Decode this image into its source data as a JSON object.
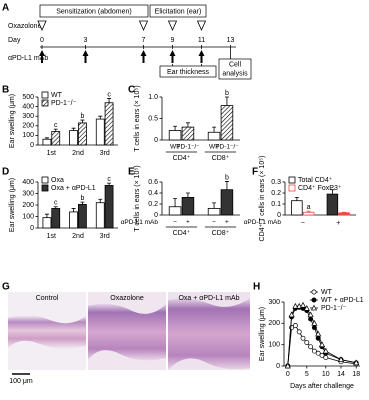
{
  "panel_a": {
    "label": "A",
    "oxazolone": "Oxazolone",
    "day_label": "Day",
    "days": [
      0,
      3,
      7,
      9,
      11,
      13
    ],
    "oxazolone_at": [
      0,
      7,
      9,
      11
    ],
    "mab_label": "αPD-L1 mAb",
    "mab_at": [
      0,
      3,
      7,
      9,
      11
    ],
    "sensitization": "Sensitization (abdomen)",
    "elicitation": "Elicitation (ear)",
    "ear_thickness": "Ear thickness",
    "cell_analysis": [
      "Cell",
      "analysis"
    ]
  },
  "histology": {
    "label": "G",
    "panels": [
      "Control",
      "Oxazolone",
      "Oxa + αPD-L1 mAb"
    ],
    "scale": "100 μm"
  },
  "chart_data": [
    {
      "type": "bar",
      "label": "B",
      "ylabel": "Ear swelling (μm)",
      "categories": [
        "1st",
        "2nd",
        "3rd"
      ],
      "ylim": [
        0,
        500
      ],
      "yticks": [
        0,
        100,
        200,
        300,
        400,
        500
      ],
      "legend": "top-left",
      "series": [
        {
          "name": "WT",
          "color": "#ffffff",
          "stroke": "#000000",
          "values": [
            60,
            150,
            270
          ],
          "errors": [
            15,
            25,
            30
          ]
        },
        {
          "name": "PD-1⁻/⁻",
          "color": "#ffffff",
          "stroke": "#000000",
          "pattern": "hatch",
          "values": [
            140,
            230,
            440
          ],
          "errors": [
            25,
            30,
            45
          ],
          "letters": [
            "c",
            "b",
            "c"
          ]
        }
      ]
    },
    {
      "type": "bar",
      "label": "C",
      "ylabel": "T cells in ears (× 10⁵)",
      "categories": [
        "CD4⁺",
        "CD8⁺"
      ],
      "sublabels": "series",
      "ylim": [
        0,
        1
      ],
      "yticks": [
        0,
        0.5,
        {
          "value": 1,
          "label": "1.0"
        }
      ],
      "series": [
        {
          "name": "WT",
          "color": "#ffffff",
          "stroke": "#000000",
          "values": [
            0.22,
            0.18
          ],
          "errors": [
            0.1,
            0.12
          ]
        },
        {
          "name": "PD-1⁻/⁻",
          "color": "#ffffff",
          "stroke": "#000000",
          "pattern": "hatch",
          "values": [
            0.3,
            0.8
          ],
          "errors": [
            0.1,
            0.2
          ],
          "letters": [
            null,
            "b"
          ]
        }
      ]
    },
    {
      "type": "bar",
      "label": "D",
      "ylabel": "Ear swelling (μm)",
      "categories": [
        "1st",
        "2nd",
        "3rd"
      ],
      "ylim": [
        0,
        400
      ],
      "yticks": [
        0,
        100,
        200,
        300,
        400
      ],
      "legend": "top-left",
      "series": [
        {
          "name": "Oxa",
          "color": "#ffffff",
          "stroke": "#000000",
          "values": [
            90,
            140,
            220
          ],
          "errors": [
            30,
            30,
            30
          ]
        },
        {
          "name": "Oxa + αPD-L1",
          "color": "#333333",
          "stroke": "#000000",
          "values": [
            170,
            205,
            370
          ],
          "errors": [
            15,
            20,
            20
          ],
          "letters": [
            "c",
            "b",
            "c"
          ]
        }
      ]
    },
    {
      "type": "bar",
      "label": "E",
      "ylabel": "T cells in ears (× 10⁵)",
      "categories": [
        "CD4⁺",
        "CD8⁺"
      ],
      "sublabels": "series",
      "row_label": "αPD-L1 mAb",
      "ylim": [
        0,
        0.6
      ],
      "yticks": [
        0,
        0.2,
        0.4,
        0.6
      ],
      "series": [
        {
          "name": "−",
          "color": "#ffffff",
          "stroke": "#000000",
          "values": [
            0.15,
            0.12
          ],
          "errors": [
            0.15,
            0.1
          ]
        },
        {
          "name": "+",
          "color": "#333333",
          "stroke": "#000000",
          "values": [
            0.32,
            0.46
          ],
          "errors": [
            0.08,
            0.15
          ],
          "letters": [
            null,
            "b"
          ]
        }
      ]
    },
    {
      "type": "bar",
      "label": "F",
      "ylabel": "CD4⁺ T cells in ears (× 10⁵)",
      "categories": [
        "−",
        "+"
      ],
      "row_label": "αPD-L1 mAb",
      "ylim": [
        0,
        0.3
      ],
      "yticks": [
        0,
        0.1,
        0.2,
        0.3
      ],
      "legend": "top-left",
      "series": [
        {
          "name": "Total CD4⁺",
          "colors": [
            "#ffffff",
            "#333333"
          ],
          "stroke": "#000000",
          "values": [
            0.13,
            0.19
          ],
          "errors": [
            0.03,
            0.04
          ]
        },
        {
          "name": "CD4⁺ FoxP3⁺",
          "colors": [
            "#ffffff",
            "#e8483f"
          ],
          "stroke": "#e8483f",
          "values": [
            0.025,
            0.02
          ],
          "errors": [
            0.01,
            0.005
          ],
          "letters": [
            "a",
            null
          ]
        }
      ]
    },
    {
      "type": "line",
      "label": "H",
      "ylabel": "Ear swelling (μm)",
      "xlabel": "Days after challenge",
      "x": [
        0,
        1,
        2,
        3,
        4,
        5,
        6,
        7,
        8,
        9,
        10,
        14,
        18
      ],
      "xlim": [
        -1,
        19
      ],
      "xticks": [
        0,
        5,
        10,
        14,
        18
      ],
      "ylim": [
        0,
        300
      ],
      "yticks": [
        0,
        100,
        200,
        300
      ],
      "legend": "top-right",
      "series": [
        {
          "name": "WT",
          "marker": "circle-open",
          "color": "#000000",
          "values": [
            0,
            180,
            190,
            160,
            130,
            110,
            90,
            70,
            60,
            50,
            40,
            20,
            10
          ]
        },
        {
          "name": "WT + αPD-L1",
          "marker": "circle",
          "color": "#000000",
          "values": [
            0,
            230,
            270,
            275,
            270,
            260,
            220,
            180,
            130,
            90,
            60,
            30,
            15
          ]
        },
        {
          "name": "PD-1⁻/⁻",
          "marker": "triangle-open",
          "color": "#000000",
          "values": [
            0,
            240,
            280,
            280,
            285,
            270,
            240,
            200,
            150,
            100,
            70,
            30,
            15
          ]
        }
      ]
    }
  ]
}
